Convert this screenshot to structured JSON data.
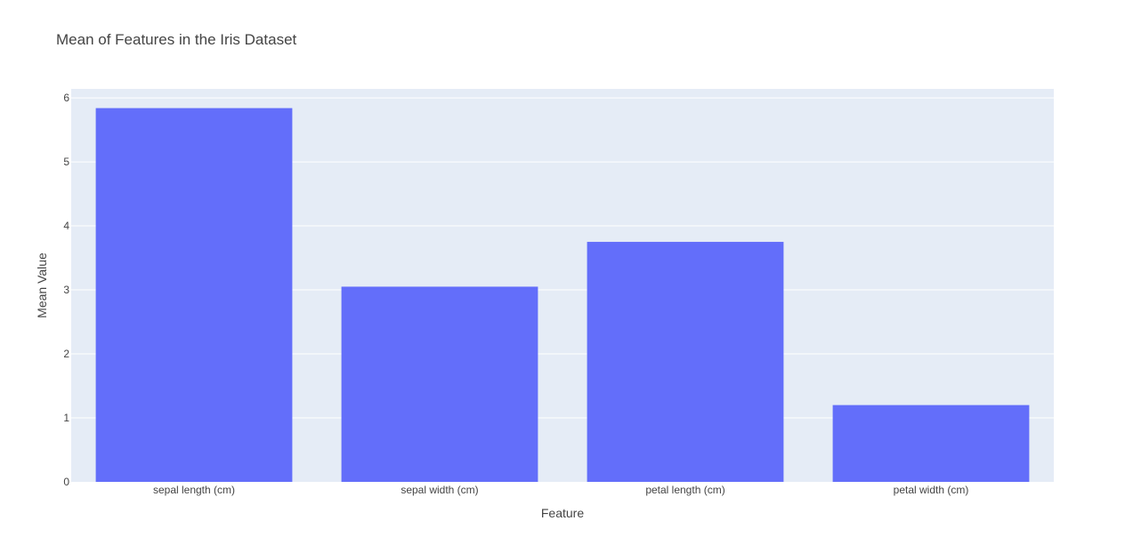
{
  "colors": {
    "plot_background": "#e5ecf6",
    "gridline": "#ffffff",
    "bar": "#636efa",
    "text": "#444444"
  },
  "chart_data": {
    "type": "bar",
    "title": "Mean of Features in the Iris Dataset",
    "xlabel": "Feature",
    "ylabel": "Mean Value",
    "categories": [
      "sepal length (cm)",
      "sepal width (cm)",
      "petal length (cm)",
      "petal width (cm)"
    ],
    "values": [
      5.84,
      3.05,
      3.75,
      1.2
    ],
    "ylim": [
      0,
      6.14
    ],
    "yticks": [
      "0",
      "1",
      "2",
      "3",
      "4",
      "5",
      "6"
    ],
    "grid": true,
    "legend": "none"
  }
}
